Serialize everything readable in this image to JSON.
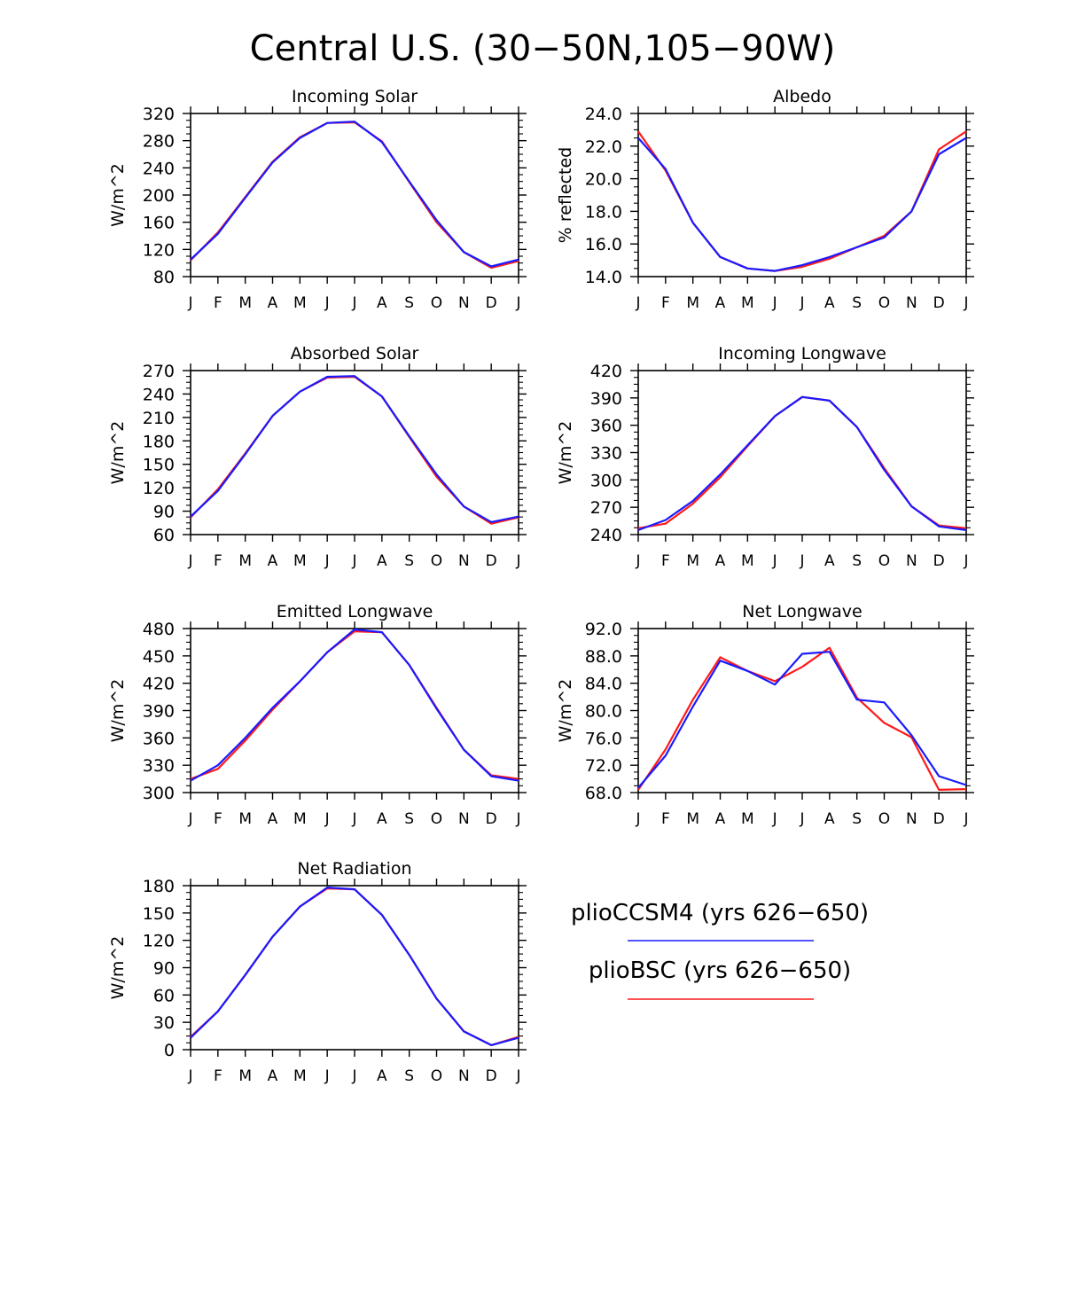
{
  "figure": {
    "title": "Central U.S. (30−50N,105−90W)",
    "colors": {
      "blue": "#1a1aff",
      "red": "#ff1a1a",
      "axis": "#000000"
    }
  },
  "legend": [
    {
      "label": "plioCCSM4 (yrs 626−650)",
      "color": "#1a1aff"
    },
    {
      "label": "plioBSC (yrs 626−650)",
      "color": "#ff1a1a"
    }
  ],
  "chart_data": [
    {
      "type": "line",
      "title": "Incoming Solar",
      "ylabel": "W/m^2",
      "categories": [
        "J",
        "F",
        "M",
        "A",
        "M",
        "J",
        "J",
        "A",
        "S",
        "O",
        "N",
        "D",
        "J"
      ],
      "ylim": [
        80,
        320
      ],
      "yticks": [
        80,
        120,
        160,
        200,
        240,
        280,
        320
      ],
      "ytick_labels": [
        "80",
        "120",
        "160",
        "200",
        "240",
        "280",
        "320"
      ],
      "series": [
        {
          "name": "plioCCSM4 (yrs 626−650)",
          "color": "#1a1aff",
          "values": [
            105,
            143,
            196,
            248,
            284,
            306,
            308,
            278,
            220,
            163,
            116,
            95,
            105
          ]
        },
        {
          "name": "plioBSC (yrs 626−650)",
          "color": "#ff1a1a",
          "values": [
            104,
            145,
            197,
            249,
            285,
            306,
            307,
            279,
            219,
            160,
            116,
            93,
            103
          ]
        }
      ]
    },
    {
      "type": "line",
      "title": "Albedo",
      "ylabel": "% reflected",
      "categories": [
        "J",
        "F",
        "M",
        "A",
        "M",
        "J",
        "J",
        "A",
        "S",
        "O",
        "N",
        "D",
        "J"
      ],
      "ylim": [
        14,
        24
      ],
      "yticks": [
        14,
        16,
        18,
        20,
        22,
        24
      ],
      "ytick_labels": [
        "14.0",
        "16.0",
        "18.0",
        "20.0",
        "22.0",
        "24.0"
      ],
      "series": [
        {
          "name": "plioCCSM4 (yrs 626−650)",
          "color": "#1a1aff",
          "values": [
            22.5,
            20.6,
            17.3,
            15.2,
            14.5,
            14.35,
            14.7,
            15.2,
            15.8,
            16.4,
            18.0,
            21.5,
            22.5
          ]
        },
        {
          "name": "plioBSC (yrs 626−650)",
          "color": "#ff1a1a",
          "values": [
            22.9,
            20.5,
            17.3,
            15.2,
            14.5,
            14.35,
            14.6,
            15.1,
            15.8,
            16.5,
            18.0,
            21.8,
            22.9
          ]
        }
      ]
    },
    {
      "type": "line",
      "title": "Absorbed Solar",
      "ylabel": "W/m^2",
      "categories": [
        "J",
        "F",
        "M",
        "A",
        "M",
        "J",
        "J",
        "A",
        "S",
        "O",
        "N",
        "D",
        "J"
      ],
      "ylim": [
        60,
        270
      ],
      "yticks": [
        60,
        90,
        120,
        150,
        180,
        210,
        240,
        270
      ],
      "ytick_labels": [
        "60",
        "90",
        "120",
        "150",
        "180",
        "210",
        "240",
        "270"
      ],
      "series": [
        {
          "name": "plioCCSM4 (yrs 626−650)",
          "color": "#1a1aff",
          "values": [
            83,
            116,
            163,
            212,
            243,
            262,
            263,
            237,
            186,
            137,
            96,
            76,
            83
          ]
        },
        {
          "name": "plioBSC (yrs 626−650)",
          "color": "#ff1a1a",
          "values": [
            82,
            118,
            164,
            212,
            243,
            261,
            262,
            237,
            185,
            134,
            96,
            74,
            82
          ]
        }
      ]
    },
    {
      "type": "line",
      "title": "Incoming Longwave",
      "ylabel": "W/m^2",
      "categories": [
        "J",
        "F",
        "M",
        "A",
        "M",
        "J",
        "J",
        "A",
        "S",
        "O",
        "N",
        "D",
        "J"
      ],
      "ylim": [
        240,
        420
      ],
      "yticks": [
        240,
        270,
        300,
        330,
        360,
        390,
        420
      ],
      "ytick_labels": [
        "240",
        "270",
        "300",
        "330",
        "360",
        "390",
        "420"
      ],
      "series": [
        {
          "name": "plioCCSM4 (yrs 626−650)",
          "color": "#1a1aff",
          "values": [
            245,
            256,
            277,
            306,
            338,
            370,
            391,
            387,
            358,
            311,
            271,
            249,
            245
          ]
        },
        {
          "name": "plioBSC (yrs 626−650)",
          "color": "#ff1a1a",
          "values": [
            247,
            252,
            274,
            303,
            337,
            370,
            391,
            387,
            358,
            313,
            271,
            250,
            247
          ]
        }
      ]
    },
    {
      "type": "line",
      "title": "Emitted Longwave",
      "ylabel": "W/m^2",
      "categories": [
        "J",
        "F",
        "M",
        "A",
        "M",
        "J",
        "J",
        "A",
        "S",
        "O",
        "N",
        "D",
        "J"
      ],
      "ylim": [
        300,
        480
      ],
      "yticks": [
        300,
        330,
        360,
        390,
        420,
        450,
        480
      ],
      "ytick_labels": [
        "300",
        "330",
        "360",
        "390",
        "420",
        "450",
        "480"
      ],
      "series": [
        {
          "name": "plioCCSM4 (yrs 626−650)",
          "color": "#1a1aff",
          "values": [
            313,
            330,
            360,
            393,
            422,
            454,
            479,
            476,
            440,
            392,
            347,
            318,
            313
          ]
        },
        {
          "name": "plioBSC (yrs 626−650)",
          "color": "#ff1a1a",
          "values": [
            315,
            326,
            357,
            391,
            422,
            454,
            477,
            476,
            440,
            393,
            347,
            319,
            315
          ]
        }
      ]
    },
    {
      "type": "line",
      "title": "Net Longwave",
      "ylabel": "W/m^2",
      "categories": [
        "J",
        "F",
        "M",
        "A",
        "M",
        "J",
        "J",
        "A",
        "S",
        "O",
        "N",
        "D",
        "J"
      ],
      "ylim": [
        68,
        92
      ],
      "yticks": [
        68,
        72,
        76,
        80,
        84,
        88,
        92
      ],
      "ytick_labels": [
        "68.0",
        "72.0",
        "76.0",
        "80.0",
        "84.0",
        "88.0",
        "92.0"
      ],
      "series": [
        {
          "name": "plioCCSM4 (yrs 626−650)",
          "color": "#1a1aff",
          "values": [
            68.7,
            73.4,
            80.6,
            87.3,
            85.8,
            83.8,
            88.3,
            88.6,
            81.6,
            81.2,
            76.4,
            70.4,
            69.1
          ]
        },
        {
          "name": "plioBSC (yrs 626−650)",
          "color": "#ff1a1a",
          "values": [
            68.4,
            74.3,
            81.6,
            87.8,
            85.8,
            84.3,
            86.4,
            89.2,
            81.9,
            78.2,
            76.1,
            68.4,
            68.5
          ]
        }
      ]
    },
    {
      "type": "line",
      "title": "Net Radiation",
      "ylabel": "W/m^2",
      "categories": [
        "J",
        "F",
        "M",
        "A",
        "M",
        "J",
        "J",
        "A",
        "S",
        "O",
        "N",
        "D",
        "J"
      ],
      "ylim": [
        0,
        180
      ],
      "yticks": [
        0,
        30,
        60,
        90,
        120,
        150,
        180
      ],
      "ytick_labels": [
        "0",
        "30",
        "60",
        "90",
        "120",
        "150",
        "180"
      ],
      "series": [
        {
          "name": "plioCCSM4 (yrs 626−650)",
          "color": "#1a1aff",
          "values": [
            13,
            42,
            82,
            124,
            157,
            178,
            176,
            148,
            104,
            56,
            20,
            5,
            13
          ]
        },
        {
          "name": "plioBSC (yrs 626−650)",
          "color": "#ff1a1a",
          "values": [
            14,
            42,
            82,
            124,
            157,
            177,
            176,
            148,
            104,
            56,
            20,
            5,
            14
          ]
        }
      ]
    }
  ]
}
